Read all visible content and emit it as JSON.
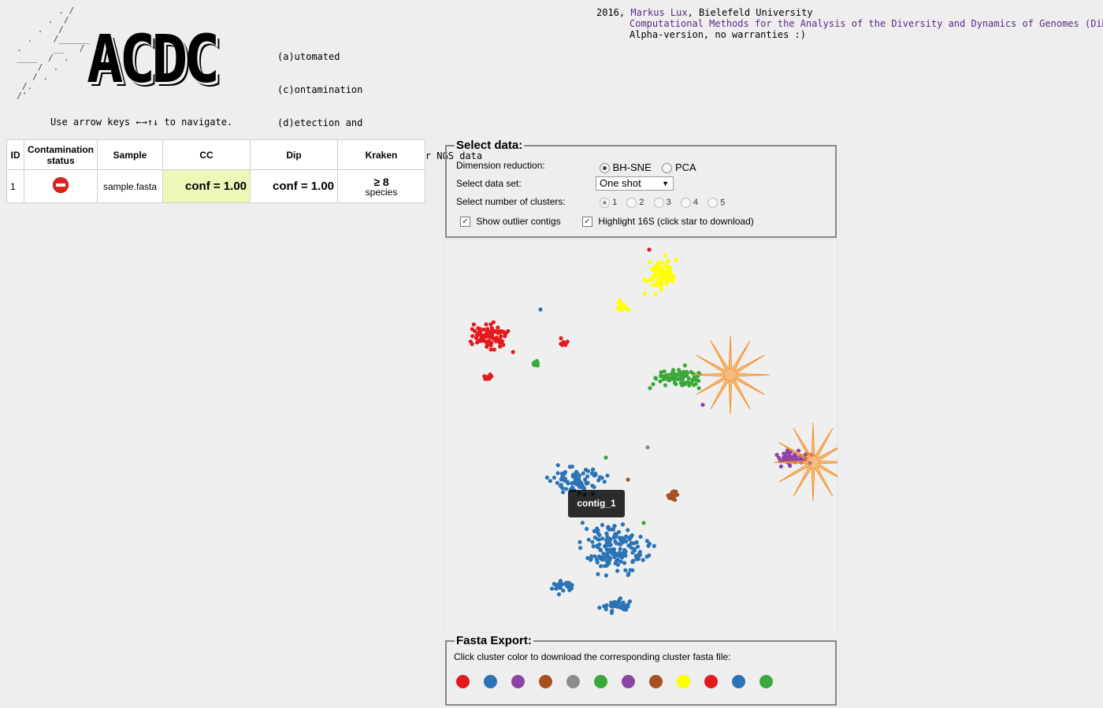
{
  "header": {
    "subtitle_lines": [
      "(a)utomated",
      "(c)ontamination",
      "(d)etection and",
      "(c)onfidence estimation for NGS data"
    ],
    "logo_word": "ACDC",
    "credits": {
      "year_prefix": "2016, ",
      "author": "Markus Lux",
      "affiliation": ", Bielefeld University",
      "group": "Computational Methods for the Analysis of the Diversity and Dynamics of Genomes (DiDy)",
      "disclaimer": "Alpha-version, no warranties :)"
    },
    "nav_hint": "Use arrow keys ←→↑↓ to navigate."
  },
  "table": {
    "headers": [
      "ID",
      "Contamination status",
      "Sample",
      "CC",
      "Dip",
      "Kraken"
    ],
    "rows": [
      {
        "id": "1",
        "status_icon": "stop-icon",
        "sample": "sample.fasta",
        "cc": "conf = 1.00",
        "dip": "conf = 1.00",
        "kraken_value": "≥ 8",
        "kraken_unit": "species"
      }
    ]
  },
  "select_data": {
    "legend": "Select data:",
    "dimension_label": "Dimension reduction:",
    "dimension_options": [
      "BH-SNE",
      "PCA"
    ],
    "dimension_selected": "BH-SNE",
    "dataset_label": "Select data set:",
    "dataset_value": "One shot",
    "clusters_label": "Select number of clusters:",
    "cluster_options": [
      "1",
      "2",
      "3",
      "4",
      "5"
    ],
    "cluster_selected": "1",
    "show_outliers_label": "Show outlier contigs",
    "highlight_label": "Highlight 16S (click star to download)"
  },
  "plot": {
    "tooltip": "contig_1",
    "colors": {
      "red": "#e31a1c",
      "blue": "#2b73b5",
      "purple": "#8e44a5",
      "brown": "#a8501f",
      "gray": "#8c8c8c",
      "green": "#3aa83a",
      "yellow": "#ffff00",
      "star": "#f5922b"
    }
  },
  "fasta_export": {
    "legend": "Fasta Export:",
    "instruction": "Click cluster color to download the corresponding cluster fasta file:",
    "swatches": [
      "#e31a1c",
      "#2b73b5",
      "#8e44a5",
      "#a8501f",
      "#8c8c8c",
      "#3aa83a",
      "#8e44a5",
      "#a8501f",
      "#ffff00",
      "#e31a1c",
      "#2b73b5",
      "#3aa83a"
    ]
  }
}
